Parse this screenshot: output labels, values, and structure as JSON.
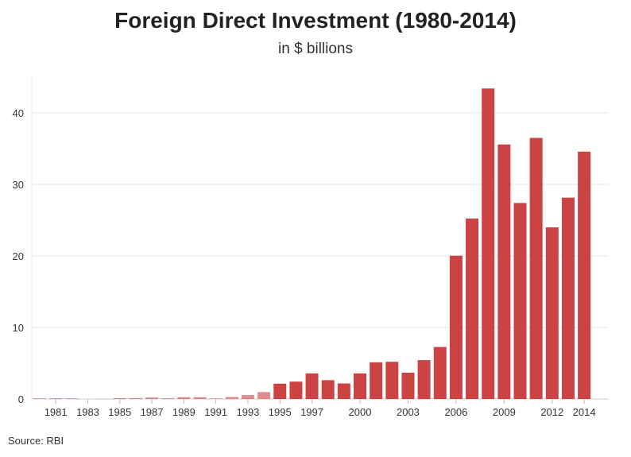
{
  "chart_data": {
    "type": "bar",
    "title": "Foreign Direct Investment (1980-2014)",
    "subtitle": "in $ billions",
    "xlabel": "",
    "ylabel": "",
    "categories": [
      "1980",
      "1981",
      "1982",
      "1983",
      "1984",
      "1985",
      "1986",
      "1987",
      "1988",
      "1989",
      "1990",
      "1991",
      "1992",
      "1993",
      "1994",
      "1995",
      "1996",
      "1997",
      "1998",
      "1999",
      "2000",
      "2001",
      "2002",
      "2003",
      "2004",
      "2005",
      "2006",
      "2007",
      "2008",
      "2009",
      "2010",
      "2011",
      "2012",
      "2013",
      "2014"
    ],
    "x_tick_labels": [
      "1981",
      "1983",
      "1985",
      "1987",
      "1989",
      "1991",
      "1993",
      "1995",
      "1997",
      "2000",
      "2003",
      "2006",
      "2009",
      "2012",
      "2014"
    ],
    "values": [
      0.08,
      0.09,
      0.07,
      0.0,
      0.02,
      0.11,
      0.12,
      0.21,
      0.09,
      0.25,
      0.24,
      0.07,
      0.28,
      0.55,
      0.97,
      2.14,
      2.43,
      3.58,
      2.63,
      2.17,
      3.58,
      5.13,
      5.2,
      3.68,
      5.43,
      7.27,
      20.03,
      25.23,
      43.41,
      35.58,
      27.4,
      36.5,
      23.99,
      28.15,
      34.58
    ],
    "ylim": [
      0,
      45
    ],
    "y_ticks": [
      0,
      10,
      20,
      30,
      40
    ],
    "grid": true,
    "bar_color": "#c62f2f"
  },
  "source": "Source: RBI"
}
